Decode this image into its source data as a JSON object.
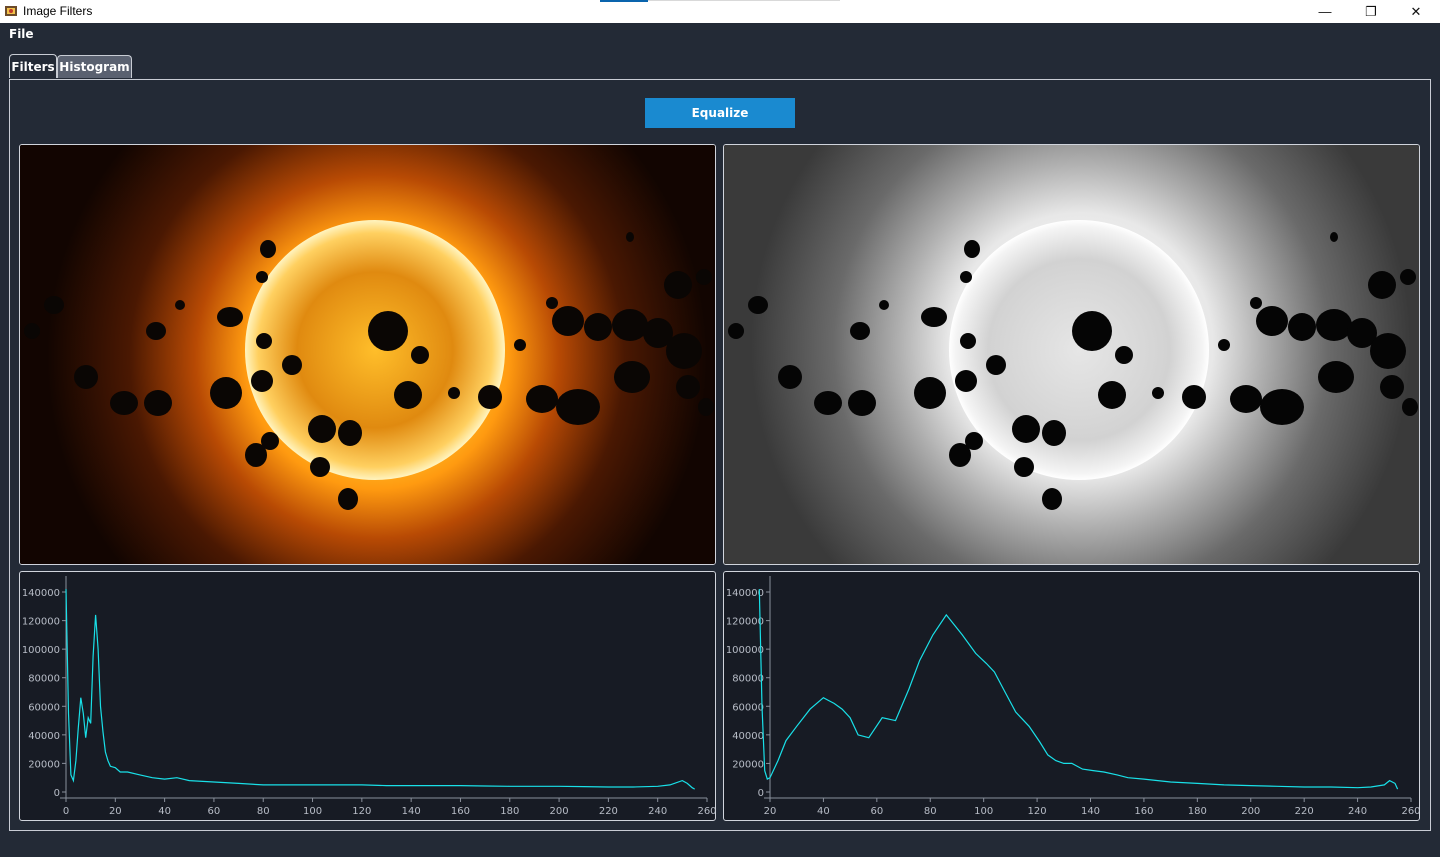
{
  "window": {
    "title": "Image Filters",
    "icon": "app-icon"
  },
  "window_controls": {
    "minimize": "—",
    "restore": "❐",
    "close": "✕"
  },
  "menu": {
    "file": "File"
  },
  "tabs": [
    {
      "label": "Filters",
      "active": true
    },
    {
      "label": "Histogram",
      "active": false
    }
  ],
  "actions": {
    "equalize_label": "Equalize"
  },
  "images": {
    "left": {
      "description_icon": "original-color-image",
      "mode": "color"
    },
    "right": {
      "description_icon": "equalized-grayscale-image",
      "mode": "grayscale"
    }
  },
  "colors": {
    "accent": "#1a8ad0",
    "line": "#19e0e8",
    "background": "#232a36",
    "plot_bg": "#171b24"
  },
  "chart_data": [
    {
      "type": "line",
      "xlim": [
        0,
        260
      ],
      "ylim": [
        0,
        140000
      ],
      "x_ticks": [
        "0",
        "20",
        "40",
        "60",
        "80",
        "100",
        "120",
        "140",
        "160",
        "180",
        "200",
        "220",
        "240",
        "260"
      ],
      "y_ticks": [
        "0",
        "20000",
        "40000",
        "60000",
        "80000",
        "100000",
        "120000",
        "140000"
      ],
      "series": [
        {
          "x": [
            0,
            1,
            2,
            3,
            4,
            5,
            6,
            7,
            8,
            9,
            10,
            11,
            12,
            13,
            14,
            15,
            16,
            17,
            18,
            20,
            22,
            25,
            30,
            35,
            40,
            45,
            50,
            60,
            70,
            80,
            90,
            100,
            110,
            120,
            130,
            140,
            150,
            160,
            170,
            180,
            190,
            200,
            210,
            220,
            230,
            240,
            245,
            250,
            252,
            254,
            255
          ],
          "y": [
            142000,
            55000,
            12000,
            8000,
            22000,
            45000,
            66000,
            55000,
            38000,
            52000,
            48000,
            95000,
            124000,
            100000,
            60000,
            42000,
            28000,
            22000,
            18000,
            17000,
            14000,
            14000,
            12000,
            10000,
            9000,
            10000,
            8000,
            7000,
            6000,
            5000,
            5000,
            5000,
            5000,
            5000,
            4500,
            4500,
            4500,
            4500,
            4200,
            4000,
            4000,
            4000,
            3800,
            3500,
            3500,
            4000,
            5000,
            8000,
            6000,
            3000,
            2000
          ]
        }
      ]
    },
    {
      "type": "line",
      "xlim": [
        20,
        260
      ],
      "ylim": [
        0,
        140000
      ],
      "x_ticks": [
        "20",
        "40",
        "60",
        "80",
        "100",
        "120",
        "140",
        "160",
        "180",
        "200",
        "220",
        "240",
        "260"
      ],
      "y_ticks": [
        "0",
        "20000",
        "40000",
        "60000",
        "80000",
        "100000",
        "120000",
        "140000"
      ],
      "series": [
        {
          "x": [
            16,
            17,
            18,
            19,
            20,
            23,
            26,
            30,
            35,
            40,
            42,
            44,
            47,
            50,
            53,
            57,
            62,
            67,
            72,
            76,
            81,
            86,
            92,
            97,
            101,
            104,
            108,
            112,
            117,
            121,
            124,
            127,
            130,
            133,
            137,
            141,
            145,
            150,
            154,
            160,
            170,
            180,
            190,
            200,
            210,
            220,
            230,
            240,
            245,
            250,
            252,
            254,
            255
          ],
          "y": [
            142000,
            60000,
            15000,
            9000,
            10000,
            22000,
            36000,
            46000,
            58000,
            66000,
            64000,
            62000,
            58000,
            52000,
            40000,
            38000,
            52000,
            50000,
            72000,
            92000,
            110000,
            124000,
            110000,
            97000,
            90000,
            84000,
            70000,
            56000,
            46000,
            35000,
            26000,
            22000,
            20000,
            20000,
            16000,
            15000,
            14000,
            12000,
            10000,
            9000,
            7000,
            6000,
            5000,
            4500,
            4000,
            3500,
            3500,
            3000,
            3500,
            5000,
            8000,
            6000,
            2000
          ]
        }
      ]
    }
  ]
}
